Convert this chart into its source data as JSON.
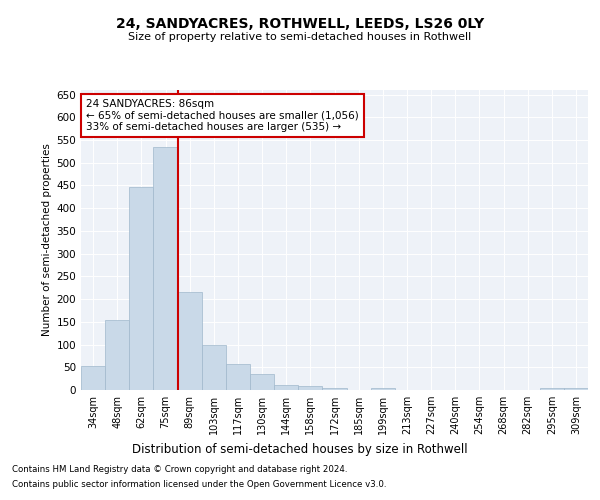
{
  "title1": "24, SANDYACRES, ROTHWELL, LEEDS, LS26 0LY",
  "title2": "Size of property relative to semi-detached houses in Rothwell",
  "xlabel": "Distribution of semi-detached houses by size in Rothwell",
  "ylabel": "Number of semi-detached properties",
  "categories": [
    "34sqm",
    "48sqm",
    "62sqm",
    "75sqm",
    "89sqm",
    "103sqm",
    "117sqm",
    "130sqm",
    "144sqm",
    "158sqm",
    "172sqm",
    "185sqm",
    "199sqm",
    "213sqm",
    "227sqm",
    "240sqm",
    "254sqm",
    "268sqm",
    "282sqm",
    "295sqm",
    "309sqm"
  ],
  "values": [
    52,
    155,
    447,
    535,
    215,
    98,
    57,
    36,
    10,
    9,
    5,
    0,
    5,
    0,
    0,
    0,
    0,
    0,
    0,
    5,
    5
  ],
  "bar_color": "#c9d9e8",
  "bar_edge_color": "#a0b8cc",
  "vline_x": 3.5,
  "vline_color": "#cc0000",
  "annotation_title": "24 SANDYACRES: 86sqm",
  "annotation_line1": "← 65% of semi-detached houses are smaller (1,056)",
  "annotation_line2": "33% of semi-detached houses are larger (535) →",
  "annotation_box_color": "#ffffff",
  "annotation_box_edge": "#cc0000",
  "ylim": [
    0,
    660
  ],
  "yticks": [
    0,
    50,
    100,
    150,
    200,
    250,
    300,
    350,
    400,
    450,
    500,
    550,
    600,
    650
  ],
  "footer1": "Contains HM Land Registry data © Crown copyright and database right 2024.",
  "footer2": "Contains public sector information licensed under the Open Government Licence v3.0.",
  "bg_color": "#eef2f8",
  "fig_color": "#ffffff"
}
